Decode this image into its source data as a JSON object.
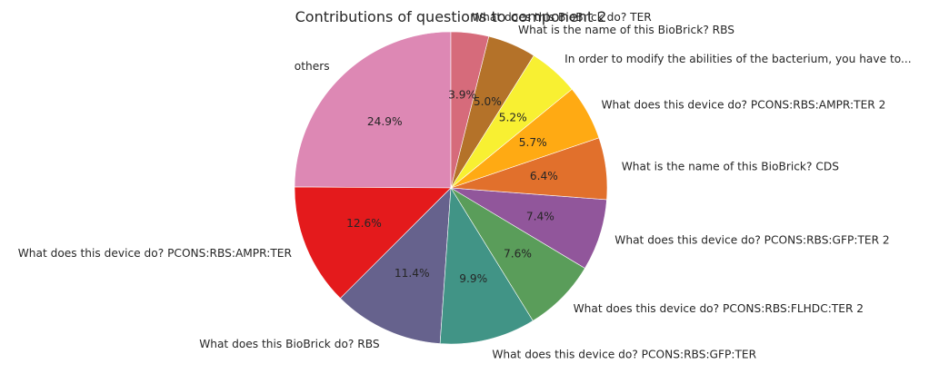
{
  "chart_data": {
    "type": "pie",
    "title": "Contributions of questions to component 2",
    "start_angle_deg": 90,
    "direction": "counterclockwise",
    "slices": [
      {
        "label": "others",
        "value": 24.9,
        "pct_label": "24.9%",
        "color": "#DD88B4"
      },
      {
        "label": "What does this device do? PCONS:RBS:AMPR:TER",
        "value": 12.6,
        "pct_label": "12.6%",
        "color": "#E41A1C"
      },
      {
        "label": "What does this BioBrick do? RBS",
        "value": 11.4,
        "pct_label": "11.4%",
        "color": "#66628D"
      },
      {
        "label": "What does this device do? PCONS:RBS:GFP:TER",
        "value": 9.9,
        "pct_label": "9.9%",
        "color": "#419486"
      },
      {
        "label": "What does this device do? PCONS:RBS:FLHDC:TER 2",
        "value": 7.6,
        "pct_label": "7.6%",
        "color": "#5A9D5A"
      },
      {
        "label": "What does this device do? PCONS:RBS:GFP:TER 2",
        "value": 7.4,
        "pct_label": "7.4%",
        "color": "#91569B"
      },
      {
        "label": "What is the name of this BioBrick? CDS",
        "value": 6.4,
        "pct_label": "6.4%",
        "color": "#E1702C"
      },
      {
        "label": "What does this device do? PCONS:RBS:AMPR:TER 2",
        "value": 5.7,
        "pct_label": "5.7%",
        "color": "#FFAA13"
      },
      {
        "label": "In order to modify the abilities of the bacterium, you have to...",
        "value": 5.2,
        "pct_label": "5.2%",
        "color": "#F8F032"
      },
      {
        "label": "What is the name of this BioBrick? RBS",
        "value": 5.0,
        "pct_label": "5.0%",
        "color": "#B47229"
      },
      {
        "label": "What does this BioBrick do? TER",
        "value": 3.9,
        "pct_label": "3.9%",
        "color": "#D66B7B"
      }
    ]
  }
}
